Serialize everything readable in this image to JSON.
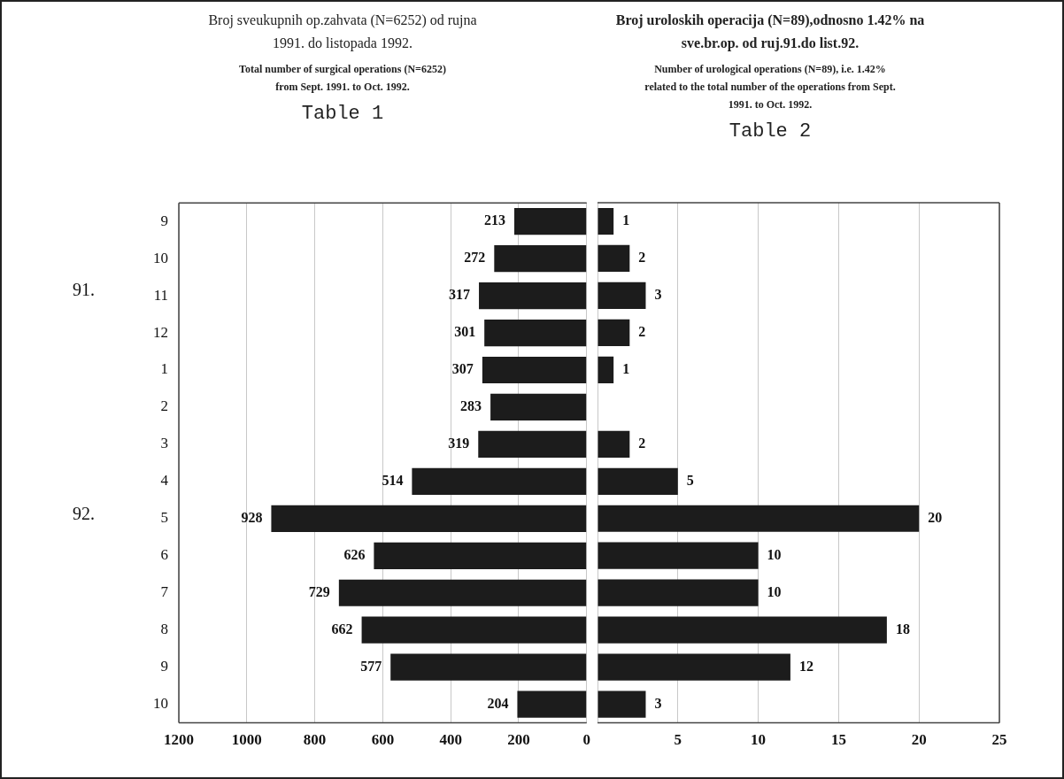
{
  "chart_data": [
    {
      "type": "bar",
      "orientation": "horizontal",
      "title": "Broj sveukupnih op.zahvata (N=6252) od rujna 1991. do listopada 1992.",
      "subtitle": "Total number of surgical operations (N=6252) from Sept. 1991. to Oct. 1992.",
      "annotations": [
        "Table 1",
        "91.",
        "92."
      ],
      "categories": [
        "9",
        "10",
        "11",
        "12",
        "1",
        "2",
        "3",
        "4",
        "5",
        "6",
        "7",
        "8",
        "9",
        "10"
      ],
      "series": [
        {
          "color": "#1c1c1c",
          "values": [
            213,
            272,
            317,
            301,
            307,
            283,
            319,
            514,
            928,
            626,
            729,
            662,
            577,
            204
          ]
        }
      ],
      "xlim": [
        1200,
        0
      ],
      "xticks": [
        1200,
        1000,
        800,
        600,
        400,
        200,
        0
      ],
      "grid": "x",
      "data_labels": true,
      "legend": false
    },
    {
      "type": "bar",
      "orientation": "horizontal",
      "title": "Broj uroloskih operacija (N=89),odnosno 1.42% na sve.br.op. od ruj.91.do list.92.",
      "subtitle": "Number of urological operations (N=89), i.e. 1.42% related to the total number of the operations from Sept. 1991. to Oct. 1992.",
      "annotations": [
        "Table 2"
      ],
      "categories": [
        "9",
        "10",
        "11",
        "12",
        "1",
        "2",
        "3",
        "4",
        "5",
        "6",
        "7",
        "8",
        "9",
        "10"
      ],
      "series": [
        {
          "color": "#1c1c1c",
          "values": [
            1,
            2,
            3,
            2,
            1,
            0,
            2,
            5,
            20,
            10,
            10,
            18,
            12,
            3
          ],
          "value_labels": [
            "1",
            "2",
            "3",
            "2",
            "1",
            null,
            "2",
            "5",
            "20",
            "10",
            "10",
            "18",
            "12",
            "3"
          ]
        }
      ],
      "xlim": [
        0,
        25
      ],
      "xticks": [
        {
          "value": 0,
          "label": null
        },
        5,
        10,
        15,
        20,
        25
      ],
      "grid": "x",
      "tick_labels": "x",
      "legend": false
    }
  ]
}
